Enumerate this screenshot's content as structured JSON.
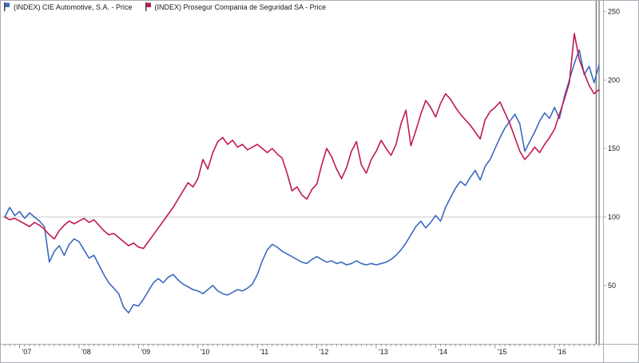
{
  "legend": {
    "items": [
      {
        "label": "(INDEX) CIE Automotive, S.A. - Price",
        "color": "#3b6abf"
      },
      {
        "label": "(INDEX) Prosegur Compania de Seguridad SA - Price",
        "color": "#c01a50"
      }
    ]
  },
  "chart_data": {
    "type": "line",
    "title": "",
    "x_unit": "month",
    "x_start": "2006-10",
    "x_end": "2016-10",
    "x_tick_labels": [
      "'07",
      "'08",
      "'09",
      "'10",
      "'11",
      "'12",
      "'13",
      "'14",
      "'15",
      "'16"
    ],
    "x_tick_month_indices": [
      3,
      15,
      27,
      39,
      51,
      63,
      75,
      87,
      99,
      111
    ],
    "y_axis": {
      "ticks": [
        50,
        100,
        150,
        200,
        250
      ],
      "side": "right"
    },
    "baseline_value": 100,
    "cursor_fractions": [
      0.995,
      1.0
    ],
    "grid": "baseline-only",
    "legend_position": "top-left",
    "series": [
      {
        "name": "(INDEX) CIE Automotive, S.A. - Price",
        "color": "#3b6abf",
        "values": [
          100,
          107,
          101,
          104,
          99,
          103,
          100,
          97,
          93,
          67,
          75,
          79,
          72,
          80,
          84,
          82,
          76,
          70,
          72,
          65,
          58,
          52,
          48,
          44,
          34,
          30,
          36,
          35,
          40,
          46,
          52,
          55,
          52,
          56,
          58,
          54,
          51,
          49,
          47,
          46,
          44,
          47,
          50,
          46,
          44,
          43,
          45,
          47,
          46,
          48,
          51,
          58,
          68,
          76,
          80,
          78,
          75,
          73,
          71,
          69,
          67,
          66,
          69,
          71,
          69,
          67,
          68,
          66,
          67,
          65,
          66,
          68,
          66,
          65,
          66,
          65,
          66,
          67,
          69,
          72,
          76,
          81,
          87,
          93,
          97,
          92,
          96,
          101,
          97,
          107,
          114,
          121,
          126,
          123,
          129,
          134,
          127,
          137,
          142,
          150,
          158,
          165,
          170,
          175,
          168,
          148,
          155,
          162,
          170,
          176,
          172,
          180,
          172,
          188,
          200,
          212,
          222,
          204,
          210,
          198,
          211
        ]
      },
      {
        "name": "(INDEX) Prosegur Compania de Seguridad SA - Price",
        "color": "#c01a50",
        "values": [
          100,
          98,
          99,
          97,
          95,
          93,
          96,
          94,
          91,
          87,
          84,
          90,
          94,
          97,
          95,
          97,
          99,
          96,
          98,
          94,
          90,
          87,
          88,
          85,
          82,
          79,
          81,
          78,
          77,
          82,
          87,
          92,
          97,
          102,
          107,
          113,
          119,
          125,
          122,
          128,
          142,
          135,
          147,
          155,
          158,
          153,
          156,
          151,
          153,
          149,
          151,
          153,
          150,
          147,
          150,
          146,
          143,
          132,
          119,
          122,
          116,
          113,
          120,
          124,
          138,
          150,
          144,
          135,
          128,
          136,
          148,
          155,
          138,
          132,
          142,
          148,
          156,
          150,
          145,
          153,
          168,
          178,
          152,
          163,
          175,
          185,
          180,
          173,
          183,
          190,
          186,
          180,
          175,
          171,
          167,
          162,
          157,
          171,
          177,
          180,
          184,
          176,
          168,
          158,
          148,
          142,
          146,
          151,
          147,
          153,
          158,
          164,
          175,
          186,
          198,
          234,
          215,
          205,
          196,
          190,
          193
        ]
      }
    ],
    "colors": {
      "frame": "#a6aeb8",
      "gridline": "#c9c9c9",
      "cursor": "#4a4a4a",
      "tick": "#8a929c",
      "label_text": "#1a1a1a"
    }
  }
}
